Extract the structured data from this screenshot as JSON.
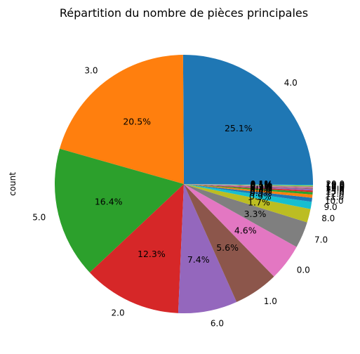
{
  "chart_data": {
    "type": "pie",
    "title": "Répartition du nombre de pièces principales",
    "ylabel": "count",
    "start_angle_deg": 0,
    "direction": "counterclockwise",
    "slices": [
      {
        "label": "4.0",
        "value": 25.1,
        "pct_label": "25.1%",
        "color": "#1f77b4"
      },
      {
        "label": "3.0",
        "value": 20.5,
        "pct_label": "20.5%",
        "color": "#ff7f0e"
      },
      {
        "label": "5.0",
        "value": 16.4,
        "pct_label": "16.4%",
        "color": "#2ca02c"
      },
      {
        "label": "2.0",
        "value": 12.3,
        "pct_label": "12.3%",
        "color": "#d62728"
      },
      {
        "label": "6.0",
        "value": 7.4,
        "pct_label": "7.4%",
        "color": "#9467bd"
      },
      {
        "label": "1.0",
        "value": 5.6,
        "pct_label": "5.6%",
        "color": "#8c564b"
      },
      {
        "label": "0.0",
        "value": 4.6,
        "pct_label": "4.6%",
        "color": "#e377c2"
      },
      {
        "label": "7.0",
        "value": 3.3,
        "pct_label": "3.3%",
        "color": "#7f7f7f"
      },
      {
        "label": "8.0",
        "value": 1.7,
        "pct_label": "1.7%",
        "color": "#bcbd22"
      },
      {
        "label": "9.0",
        "value": 0.9,
        "pct_label": "0.9%",
        "color": "#17becf"
      },
      {
        "label": "10.0",
        "value": 0.5,
        "pct_label": "0.5%",
        "color": "#1f77b4"
      },
      {
        "label": "11.0",
        "value": 0.4,
        "pct_label": "0.4%",
        "color": "#ff7f0e"
      },
      {
        "label": "12.0",
        "value": 0.3,
        "pct_label": "0.3%",
        "color": "#2ca02c"
      },
      {
        "label": "13.0",
        "value": 0.2,
        "pct_label": "0.2%",
        "color": "#d62728"
      },
      {
        "label": "14.0",
        "value": 0.2,
        "pct_label": "0.2%",
        "color": "#9467bd"
      },
      {
        "label": "15.0",
        "value": 0.1,
        "pct_label": "0.1%",
        "color": "#8c564b"
      },
      {
        "label": "16.0",
        "value": 0.1,
        "pct_label": "0.1%",
        "color": "#e377c2"
      },
      {
        "label": "17.0",
        "value": 0.1,
        "pct_label": "0.1%",
        "color": "#7f7f7f"
      },
      {
        "label": "18.0",
        "value": 0.1,
        "pct_label": "0.1%",
        "color": "#bcbd22"
      },
      {
        "label": "19.0",
        "value": 0.1,
        "pct_label": "0.1%",
        "color": "#17becf"
      },
      {
        "label": "20.0",
        "value": 0.1,
        "pct_label": "0.1%",
        "color": "#1f77b4"
      }
    ]
  }
}
